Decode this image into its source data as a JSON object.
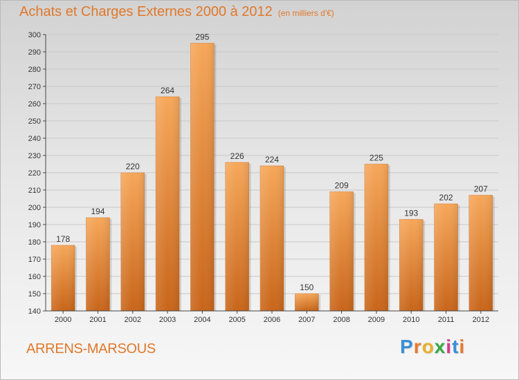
{
  "chart_data": {
    "type": "bar",
    "title": "Achats et Charges Externes 2000 à 2012",
    "subtitle": "(en milliers d'€)",
    "categories": [
      "2000",
      "2001",
      "2002",
      "2003",
      "2004",
      "2005",
      "2006",
      "2007",
      "2008",
      "2009",
      "2010",
      "2011",
      "2012"
    ],
    "values": [
      178,
      194,
      220,
      264,
      295,
      226,
      224,
      150,
      209,
      225,
      193,
      202,
      207
    ],
    "xlabel": "",
    "ylabel": "",
    "ylim": [
      140,
      300
    ],
    "yticks": [
      140,
      150,
      160,
      170,
      180,
      190,
      200,
      210,
      220,
      230,
      240,
      250,
      260,
      270,
      280,
      290,
      300
    ],
    "grid": true,
    "legend": "none",
    "bar_color": "#f0913a"
  },
  "location": "ARRENS-MARSOUS",
  "logo": {
    "text": "Proxiti",
    "letters": [
      "P",
      "r",
      "o",
      "x",
      "i",
      "t",
      "i"
    ],
    "colors": [
      "#3a8fd8",
      "#e8792c",
      "#e8b02a",
      "#39a845",
      "#d83a8f",
      "#3a8fd8",
      "#e8792c"
    ]
  }
}
